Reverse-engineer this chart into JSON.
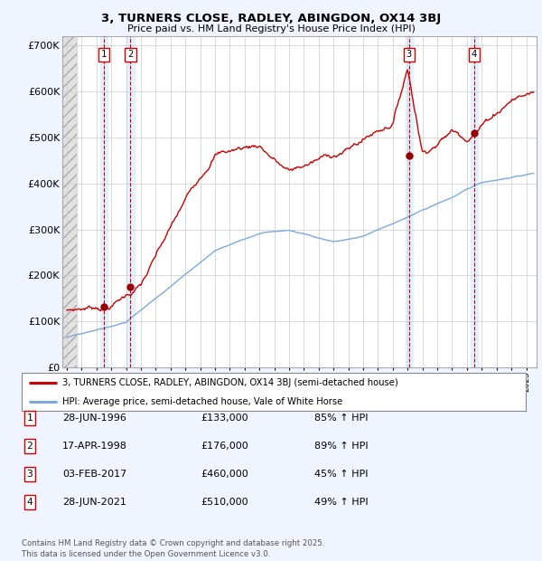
{
  "title_line1": "3, TURNERS CLOSE, RADLEY, ABINGDON, OX14 3BJ",
  "title_line2": "Price paid vs. HM Land Registry's House Price Index (HPI)",
  "ylim": [
    0,
    720000
  ],
  "yticks": [
    0,
    100000,
    200000,
    300000,
    400000,
    500000,
    600000,
    700000
  ],
  "ytick_labels": [
    "£0",
    "£100K",
    "£200K",
    "£300K",
    "£400K",
    "£500K",
    "£600K",
    "£700K"
  ],
  "sale_dates_num": [
    1996.49,
    1998.3,
    2017.09,
    2021.49
  ],
  "sale_prices": [
    133000,
    176000,
    460000,
    510000
  ],
  "sale_labels": [
    "1",
    "2",
    "3",
    "4"
  ],
  "sale_label_info": [
    {
      "num": "1",
      "date": "28-JUN-1996",
      "price": "£133,000",
      "pct": "85% ↑ HPI"
    },
    {
      "num": "2",
      "date": "17-APR-1998",
      "price": "£176,000",
      "pct": "89% ↑ HPI"
    },
    {
      "num": "3",
      "date": "03-FEB-2017",
      "price": "£460,000",
      "pct": "45% ↑ HPI"
    },
    {
      "num": "4",
      "date": "28-JUN-2021",
      "price": "£510,000",
      "pct": "49% ↑ HPI"
    }
  ],
  "property_line_color": "#cc0000",
  "hpi_line_color": "#7aaadd",
  "background_color": "#f0f4ff",
  "plot_bg_color": "#ffffff",
  "grid_color": "#cccccc",
  "vline_color": "#cc0000",
  "shade_color": "#ddeeff",
  "legend_label_property": "3, TURNERS CLOSE, RADLEY, ABINGDON, OX14 3BJ (semi-detached house)",
  "legend_label_hpi": "HPI: Average price, semi-detached house, Vale of White Horse",
  "footnote": "Contains HM Land Registry data © Crown copyright and database right 2025.\nThis data is licensed under the Open Government Licence v3.0.",
  "xmin": 1993.7,
  "xmax": 2025.7
}
